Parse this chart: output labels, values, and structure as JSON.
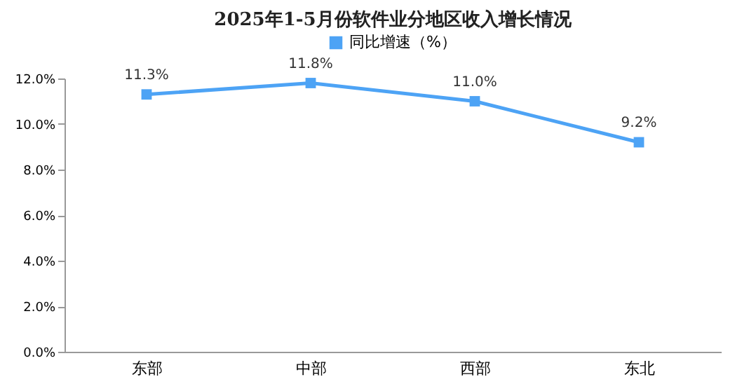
{
  "chart_data": {
    "type": "line",
    "title": "2025年1-5月份软件业分地区收入增长情况",
    "categories": [
      "东部",
      "中部",
      "西部",
      "东北"
    ],
    "series": [
      {
        "name": "同比增速（%）",
        "color": "#4da3f5",
        "values": [
          11.3,
          11.8,
          11.0,
          9.2
        ],
        "value_labels": [
          "11.3%",
          "11.8%",
          "11.0%",
          "9.2%"
        ]
      }
    ],
    "ylim": [
      0,
      12
    ],
    "yticks": [
      {
        "value": 0,
        "label": "0.0%"
      },
      {
        "value": 2,
        "label": "2.0%"
      },
      {
        "value": 4,
        "label": "4.0%"
      },
      {
        "value": 6,
        "label": "6.0%"
      },
      {
        "value": 8,
        "label": "8.0%"
      },
      {
        "value": 10,
        "label": "10.0%"
      },
      {
        "value": 12,
        "label": "12.0%"
      }
    ],
    "grid": false,
    "legend": "top",
    "marker": "square",
    "line_style": "solid"
  }
}
